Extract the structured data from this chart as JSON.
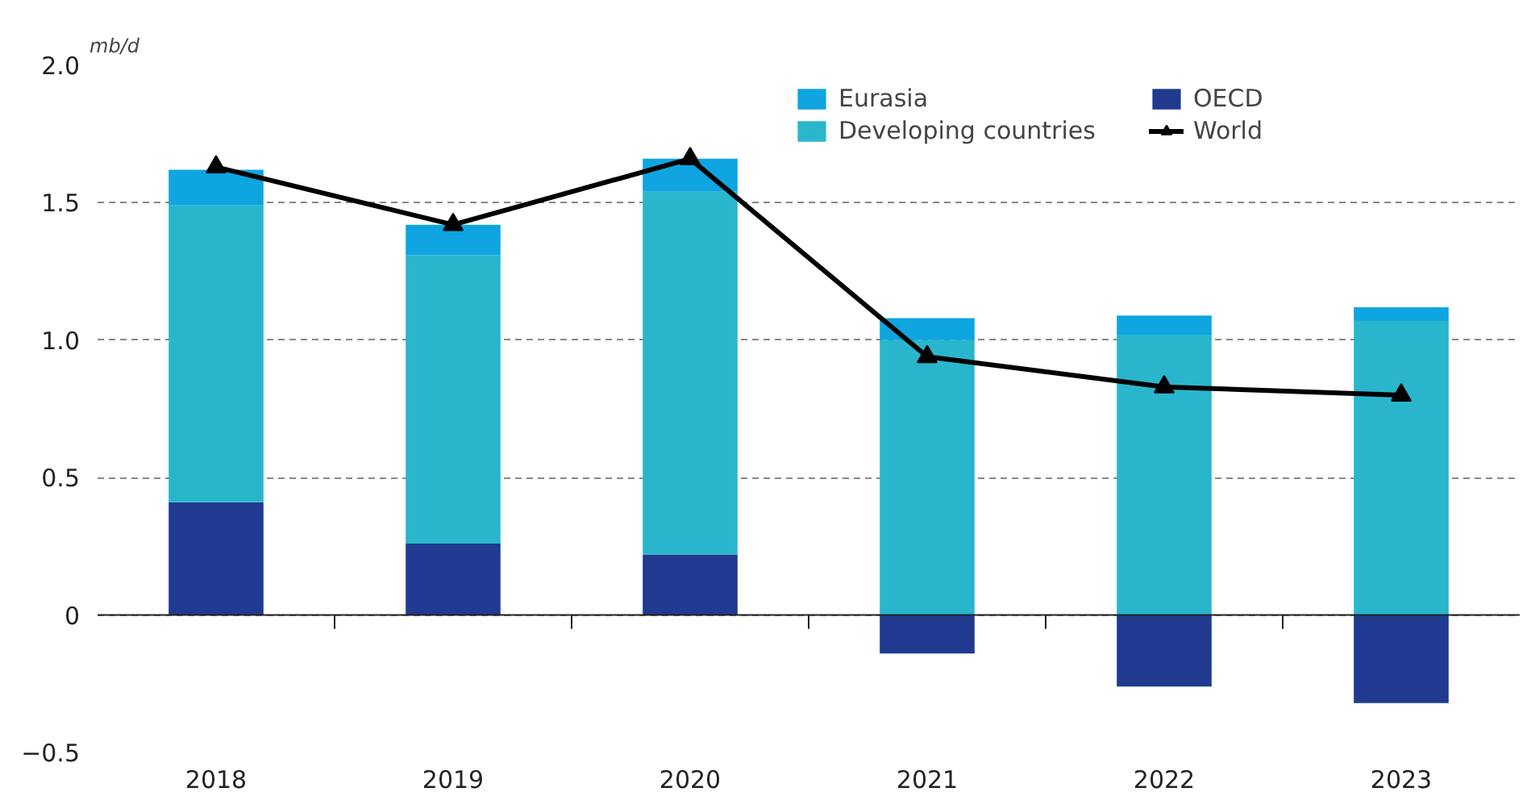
{
  "chart_data": {
    "type": "bar",
    "stacked": true,
    "ylabel": "mb/d",
    "categories": [
      "2018",
      "2019",
      "2020",
      "2021",
      "2022",
      "2023"
    ],
    "series": [
      {
        "name": "OECD",
        "color": "#1f3a8f",
        "values": [
          0.41,
          0.26,
          0.22,
          -0.14,
          -0.26,
          -0.32
        ]
      },
      {
        "name": "Developing countries",
        "color": "#29b6cc",
        "values": [
          1.08,
          1.05,
          1.32,
          1.0,
          1.02,
          1.07
        ]
      },
      {
        "name": "Eurasia",
        "color": "#0ea5e0",
        "values": [
          0.13,
          0.11,
          0.12,
          0.08,
          0.07,
          0.05
        ]
      },
      {
        "name": "World",
        "type": "line",
        "color": "#000000",
        "marker": "triangle",
        "values": [
          1.63,
          1.42,
          1.66,
          0.94,
          0.83,
          0.8
        ]
      }
    ],
    "ylim": [
      -0.5,
      2.0
    ],
    "yticks": [
      {
        "value": -0.5,
        "label": "−0.5"
      },
      0,
      0.5,
      {
        "value": 1.0,
        "label": "1.0"
      },
      1.5,
      {
        "value": 2.0,
        "label": "2.0"
      }
    ],
    "grid": "y",
    "legend": "top right"
  }
}
